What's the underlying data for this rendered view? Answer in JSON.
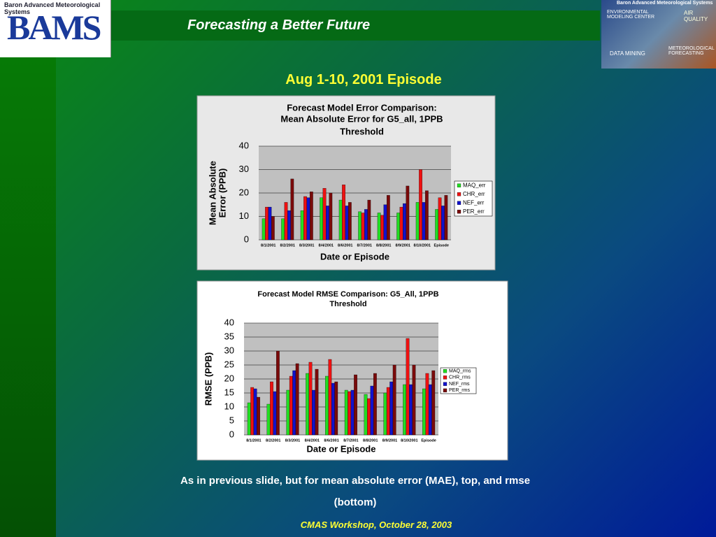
{
  "slide": {
    "logo": "BAMS",
    "logo_caption": "Baron Advanced Meteorological Systems",
    "header": "Forecasting a Better Future",
    "banner": [
      "Baron Advanced Meteorological Systems",
      "ENVIRONMENTAL MODELING CENTER",
      "AIR QUALITY",
      "DATA MINING",
      "METEOROLOGICAL FORECASTING"
    ],
    "subtitle": "Aug 1-10, 2001 Episode",
    "caption": "As in previous slide, but for mean absolute error (MAE), top, and rmse (bottom)",
    "footer": "CMAS Workshop, October 28, 2003"
  },
  "chart_data": [
    {
      "type": "bar",
      "title": [
        "Forecast Model Error Comparison:",
        "Mean Absolute Error for G5_all, 1PPB",
        "Threshold"
      ],
      "ylabel": [
        "Mean Absolute",
        "Error (PPB)"
      ],
      "xlabel": "Date or Episode",
      "categories": [
        "8/1/2001",
        "8/2/2001",
        "8/3/2001",
        "8/4/2001",
        "8/6/2001",
        "8/7/2001",
        "8/8/2001",
        "8/9/2001",
        "8/10/2001",
        "Episode"
      ],
      "series": [
        {
          "name": "MAQ_err",
          "color": "#22dd22",
          "values": [
            9,
            9,
            12.5,
            18,
            17,
            12,
            11.5,
            11.5,
            16,
            13
          ]
        },
        {
          "name": "CHR_err",
          "color": "#ee1111",
          "values": [
            14,
            16,
            18.5,
            22,
            23.5,
            11.5,
            10.5,
            14,
            30,
            18
          ]
        },
        {
          "name": "NEF_err",
          "color": "#1111cc",
          "values": [
            14,
            12.5,
            18,
            14.5,
            14.5,
            13,
            15,
            15.5,
            16,
            14.5
          ]
        },
        {
          "name": "PER_err",
          "color": "#7a0a0a",
          "values": [
            10,
            26,
            20.5,
            20,
            16,
            17,
            19,
            23,
            21,
            19
          ]
        }
      ],
      "ylim": [
        0,
        40
      ],
      "yticks": [
        0,
        10,
        20,
        30,
        40
      ],
      "grid": true,
      "legend": "right"
    },
    {
      "type": "bar",
      "title": [
        "Forecast Model RMSE Comparison:  G5_All, 1PPB",
        "Threshold"
      ],
      "ylabel": [
        "RMSE (PPB)"
      ],
      "xlabel": "Date or Episode",
      "categories": [
        "8/1/2001",
        "8/2/2001",
        "8/3/2001",
        "8/4/2001",
        "8/6/2001",
        "8/7/2001",
        "8/8/2001",
        "8/9/2001",
        "8/10/2001",
        "Episode"
      ],
      "series": [
        {
          "name": "MAQ_rms",
          "color": "#22dd22",
          "values": [
            11.5,
            11,
            16,
            22,
            21,
            16,
            14.5,
            15,
            18,
            16.5
          ]
        },
        {
          "name": "CHR_rms",
          "color": "#ee1111",
          "values": [
            17,
            19,
            21,
            26,
            27,
            15.5,
            13,
            17,
            34.5,
            22
          ]
        },
        {
          "name": "NEF_rms",
          "color": "#1111cc",
          "values": [
            16.5,
            15.5,
            23,
            16,
            18.5,
            16,
            17.5,
            19,
            18,
            18
          ]
        },
        {
          "name": "PER_rms",
          "color": "#7a0a0a",
          "values": [
            13.5,
            30,
            25.5,
            23.5,
            19,
            21.5,
            22,
            25,
            25,
            23
          ]
        }
      ],
      "ylim": [
        0,
        40
      ],
      "yticks": [
        0,
        5,
        10,
        15,
        20,
        25,
        30,
        35,
        40
      ],
      "grid": true,
      "legend": "right"
    }
  ]
}
